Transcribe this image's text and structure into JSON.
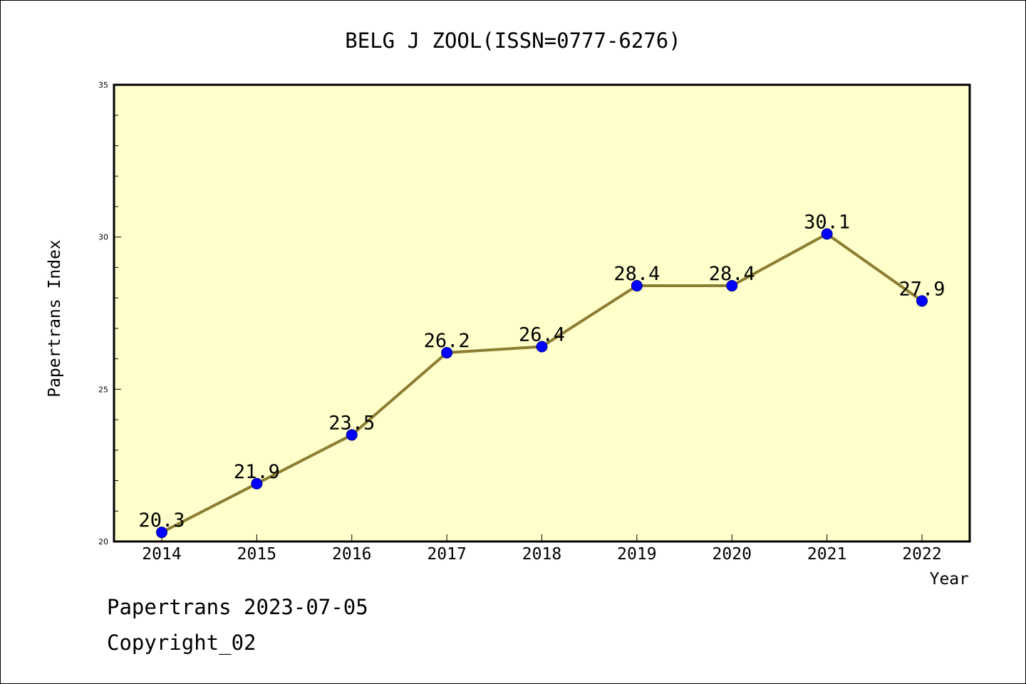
{
  "chart_data": {
    "type": "line",
    "title": "BELG J ZOOL(ISSN=0777-6276)",
    "xlabel": "Year",
    "ylabel": "Papertrans Index",
    "x": [
      "2014",
      "2015",
      "2016",
      "2017",
      "2018",
      "2019",
      "2020",
      "2021",
      "2022"
    ],
    "series": [
      {
        "values": [
          20.3,
          21.9,
          23.5,
          26.2,
          26.4,
          28.4,
          28.4,
          30.1,
          27.9
        ],
        "data_labels": [
          "20.3",
          "21.9",
          "23.5",
          "26.2",
          "26.4",
          "28.4",
          "28.4",
          "30.1",
          "27.9"
        ]
      }
    ],
    "ylim": [
      20,
      35
    ],
    "y_ticks": [
      20,
      25,
      30,
      35
    ],
    "y_tick_labels": [
      "20",
      "25",
      "30",
      "35"
    ],
    "y_minor_step": 1,
    "grid": false,
    "colors": {
      "plot_background": "#ffffcc",
      "line": "#8b7d32",
      "marker": "#0000ff",
      "marker_edge": "#00008b",
      "axis": "#000000"
    }
  },
  "footer": {
    "date_text": "Papertrans 2023-07-05",
    "copyright_text": "Copyright_02"
  }
}
